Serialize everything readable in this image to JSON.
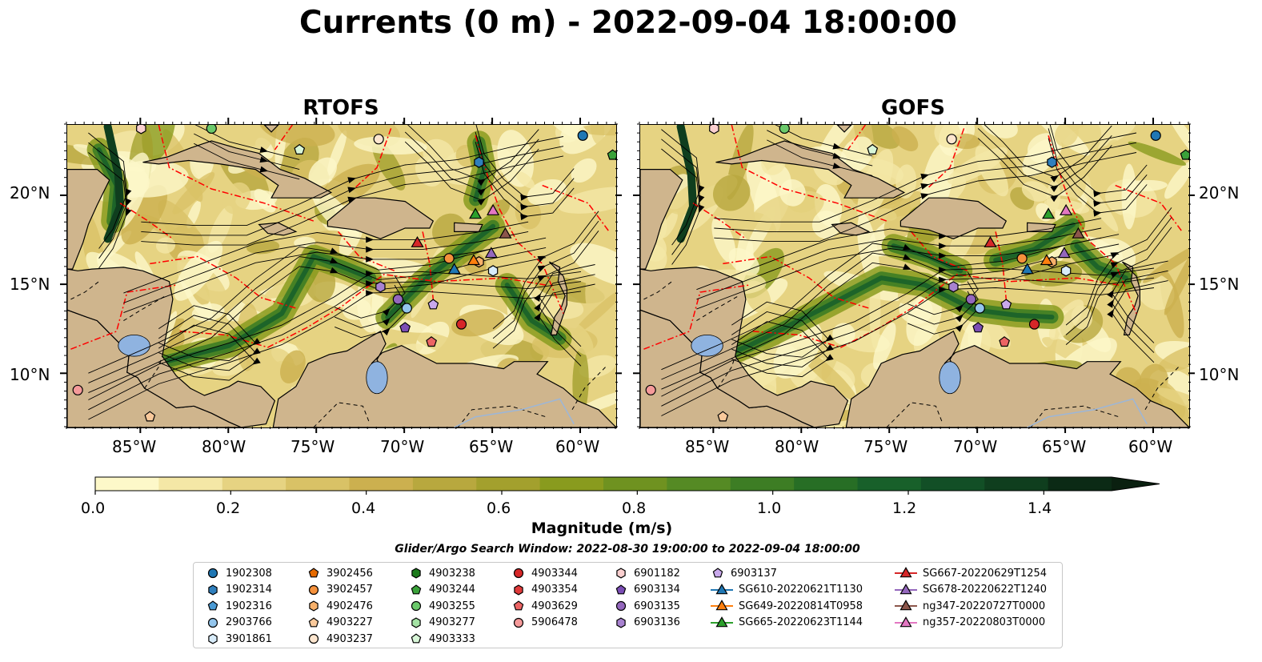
{
  "title": "Currents (0 m) - 2022-09-04 18:00:00",
  "panels": [
    {
      "title": "RTOFS",
      "key": "rtofs"
    },
    {
      "title": "GOFS",
      "key": "gofs"
    }
  ],
  "lon_ticks": [
    "85°W",
    "80°W",
    "75°W",
    "70°W",
    "65°W",
    "60°W"
  ],
  "lat_ticks": [
    "20°N",
    "15°N",
    "10°N"
  ],
  "colorbar": {
    "label": "Magnitude (m/s)",
    "ticks": [
      "0.0",
      "0.2",
      "0.4",
      "0.6",
      "0.8",
      "1.0",
      "1.2",
      "1.4"
    ],
    "levels": 16,
    "extend": "max"
  },
  "search_window": "Glider/Argo Search Window: 2022-08-30 19:00:00 to 2022-09-04 18:00:00",
  "legend_columns": [
    [
      {
        "label": "1902308",
        "marker": "circle",
        "color": "#1f77b4"
      },
      {
        "label": "1902314",
        "marker": "hexagon",
        "color": "#2f7fbd"
      },
      {
        "label": "1902316",
        "marker": "pentagon",
        "color": "#4a9ad4"
      },
      {
        "label": "2903766",
        "marker": "circle",
        "color": "#93c5ec"
      },
      {
        "label": "3901861",
        "marker": "hexagon",
        "color": "#d8ecfa"
      }
    ],
    [
      {
        "label": "3902456",
        "marker": "pentagon",
        "color": "#e66a00"
      },
      {
        "label": "3902457",
        "marker": "circle",
        "color": "#f5913c"
      },
      {
        "label": "4902476",
        "marker": "hexagon",
        "color": "#f7b06a"
      },
      {
        "label": "4903227",
        "marker": "pentagon",
        "color": "#f9c99b"
      },
      {
        "label": "4903237",
        "marker": "circle",
        "color": "#fde6cf"
      }
    ],
    [
      {
        "label": "4903238",
        "marker": "hexagon",
        "color": "#1c7a1c"
      },
      {
        "label": "4903244",
        "marker": "pentagon",
        "color": "#3aa23a"
      },
      {
        "label": "4903255",
        "marker": "circle",
        "color": "#6bc96b"
      },
      {
        "label": "4903277",
        "marker": "hexagon",
        "color": "#a5e3a5"
      },
      {
        "label": "4903333",
        "marker": "pentagon",
        "color": "#d8f6d8"
      }
    ],
    [
      {
        "label": "4903344",
        "marker": "circle",
        "color": "#d62728"
      },
      {
        "label": "4903354",
        "marker": "hexagon",
        "color": "#e03a3a"
      },
      {
        "label": "4903629",
        "marker": "pentagon",
        "color": "#ec6464"
      },
      {
        "label": "5906478",
        "marker": "circle",
        "color": "#f59a9a"
      }
    ],
    [
      {
        "label": "6901182",
        "marker": "hexagon",
        "color": "#fbd0d0"
      },
      {
        "label": "6903134",
        "marker": "pentagon",
        "color": "#7b4db5"
      },
      {
        "label": "6903135",
        "marker": "circle",
        "color": "#9467bd"
      },
      {
        "label": "6903136",
        "marker": "hexagon",
        "color": "#a882d0"
      }
    ],
    [
      {
        "label": "6903137",
        "marker": "pentagon",
        "color": "#c9a9ec"
      },
      {
        "label": "SG610-20220621T1130",
        "marker": "triangle-line",
        "color": "#1f77b4"
      },
      {
        "label": "SG649-20220814T0958",
        "marker": "triangle-line",
        "color": "#ff7f0e"
      },
      {
        "label": "SG665-20220623T1144",
        "marker": "triangle-line",
        "color": "#2ca02c"
      }
    ],
    [
      {
        "label": "SG667-20220629T1254",
        "marker": "triangle-line",
        "color": "#d62728"
      },
      {
        "label": "SG678-20220622T1240",
        "marker": "triangle-line",
        "color": "#9467bd"
      },
      {
        "label": "ng347-20220727T0000",
        "marker": "triangle-line",
        "color": "#8c564b"
      },
      {
        "label": "ng357-20220803T0000",
        "marker": "triangle-line",
        "color": "#e377c2"
      }
    ]
  ],
  "map_markers": [
    {
      "label": "1902308",
      "lon": -59.9,
      "lat": 23.4
    },
    {
      "label": "1902314",
      "lon": -65.8,
      "lat": 21.9
    },
    {
      "label": "2903766",
      "lon": -69.9,
      "lat": 13.7
    },
    {
      "label": "3901861",
      "lon": -65.0,
      "lat": 15.8
    },
    {
      "label": "3902457",
      "lon": -67.5,
      "lat": 16.5
    },
    {
      "label": "4902476",
      "lon": -65.8,
      "lat": 16.3
    },
    {
      "label": "4903227",
      "lon": -84.5,
      "lat": 7.6
    },
    {
      "label": "4903237",
      "lon": -71.5,
      "lat": 23.2
    },
    {
      "label": "4903244",
      "lon": -58.2,
      "lat": 22.3
    },
    {
      "label": "4903255",
      "lon": -81.0,
      "lat": 23.8
    },
    {
      "label": "4903333",
      "lon": -76.0,
      "lat": 22.6
    },
    {
      "label": "4903344",
      "lon": -66.8,
      "lat": 12.8
    },
    {
      "label": "4903629",
      "lon": -68.5,
      "lat": 11.8
    },
    {
      "label": "5906478",
      "lon": -88.6,
      "lat": 9.1
    },
    {
      "label": "6901182",
      "lon": -85.0,
      "lat": 23.8
    },
    {
      "label": "6903134",
      "lon": -70.0,
      "lat": 12.6
    },
    {
      "label": "6903135",
      "lon": -70.4,
      "lat": 14.2
    },
    {
      "label": "6903136",
      "lon": -71.4,
      "lat": 14.9
    },
    {
      "label": "6903137",
      "lon": -68.4,
      "lat": 13.9
    },
    {
      "label": "SG610-20220621T1130",
      "lon": -67.2,
      "lat": 15.9
    },
    {
      "label": "SG649-20220814T0958",
      "lon": -66.1,
      "lat": 16.4
    },
    {
      "label": "SG665-20220623T1144",
      "lon": -66.0,
      "lat": 19.0
    },
    {
      "label": "SG667-20220629T1254",
      "lon": -69.3,
      "lat": 17.4
    },
    {
      "label": "SG678-20220622T1240",
      "lon": -65.1,
      "lat": 16.8
    },
    {
      "label": "ng347-20220727T0000",
      "lon": -64.3,
      "lat": 17.9
    },
    {
      "label": "ng357-20220803T0000",
      "lon": -65.0,
      "lat": 19.2
    }
  ],
  "colors": {
    "land": "#cfb58d",
    "lake": "#8fb3e0",
    "eez_boundary": "#ff0000",
    "streamline": "#000000"
  }
}
